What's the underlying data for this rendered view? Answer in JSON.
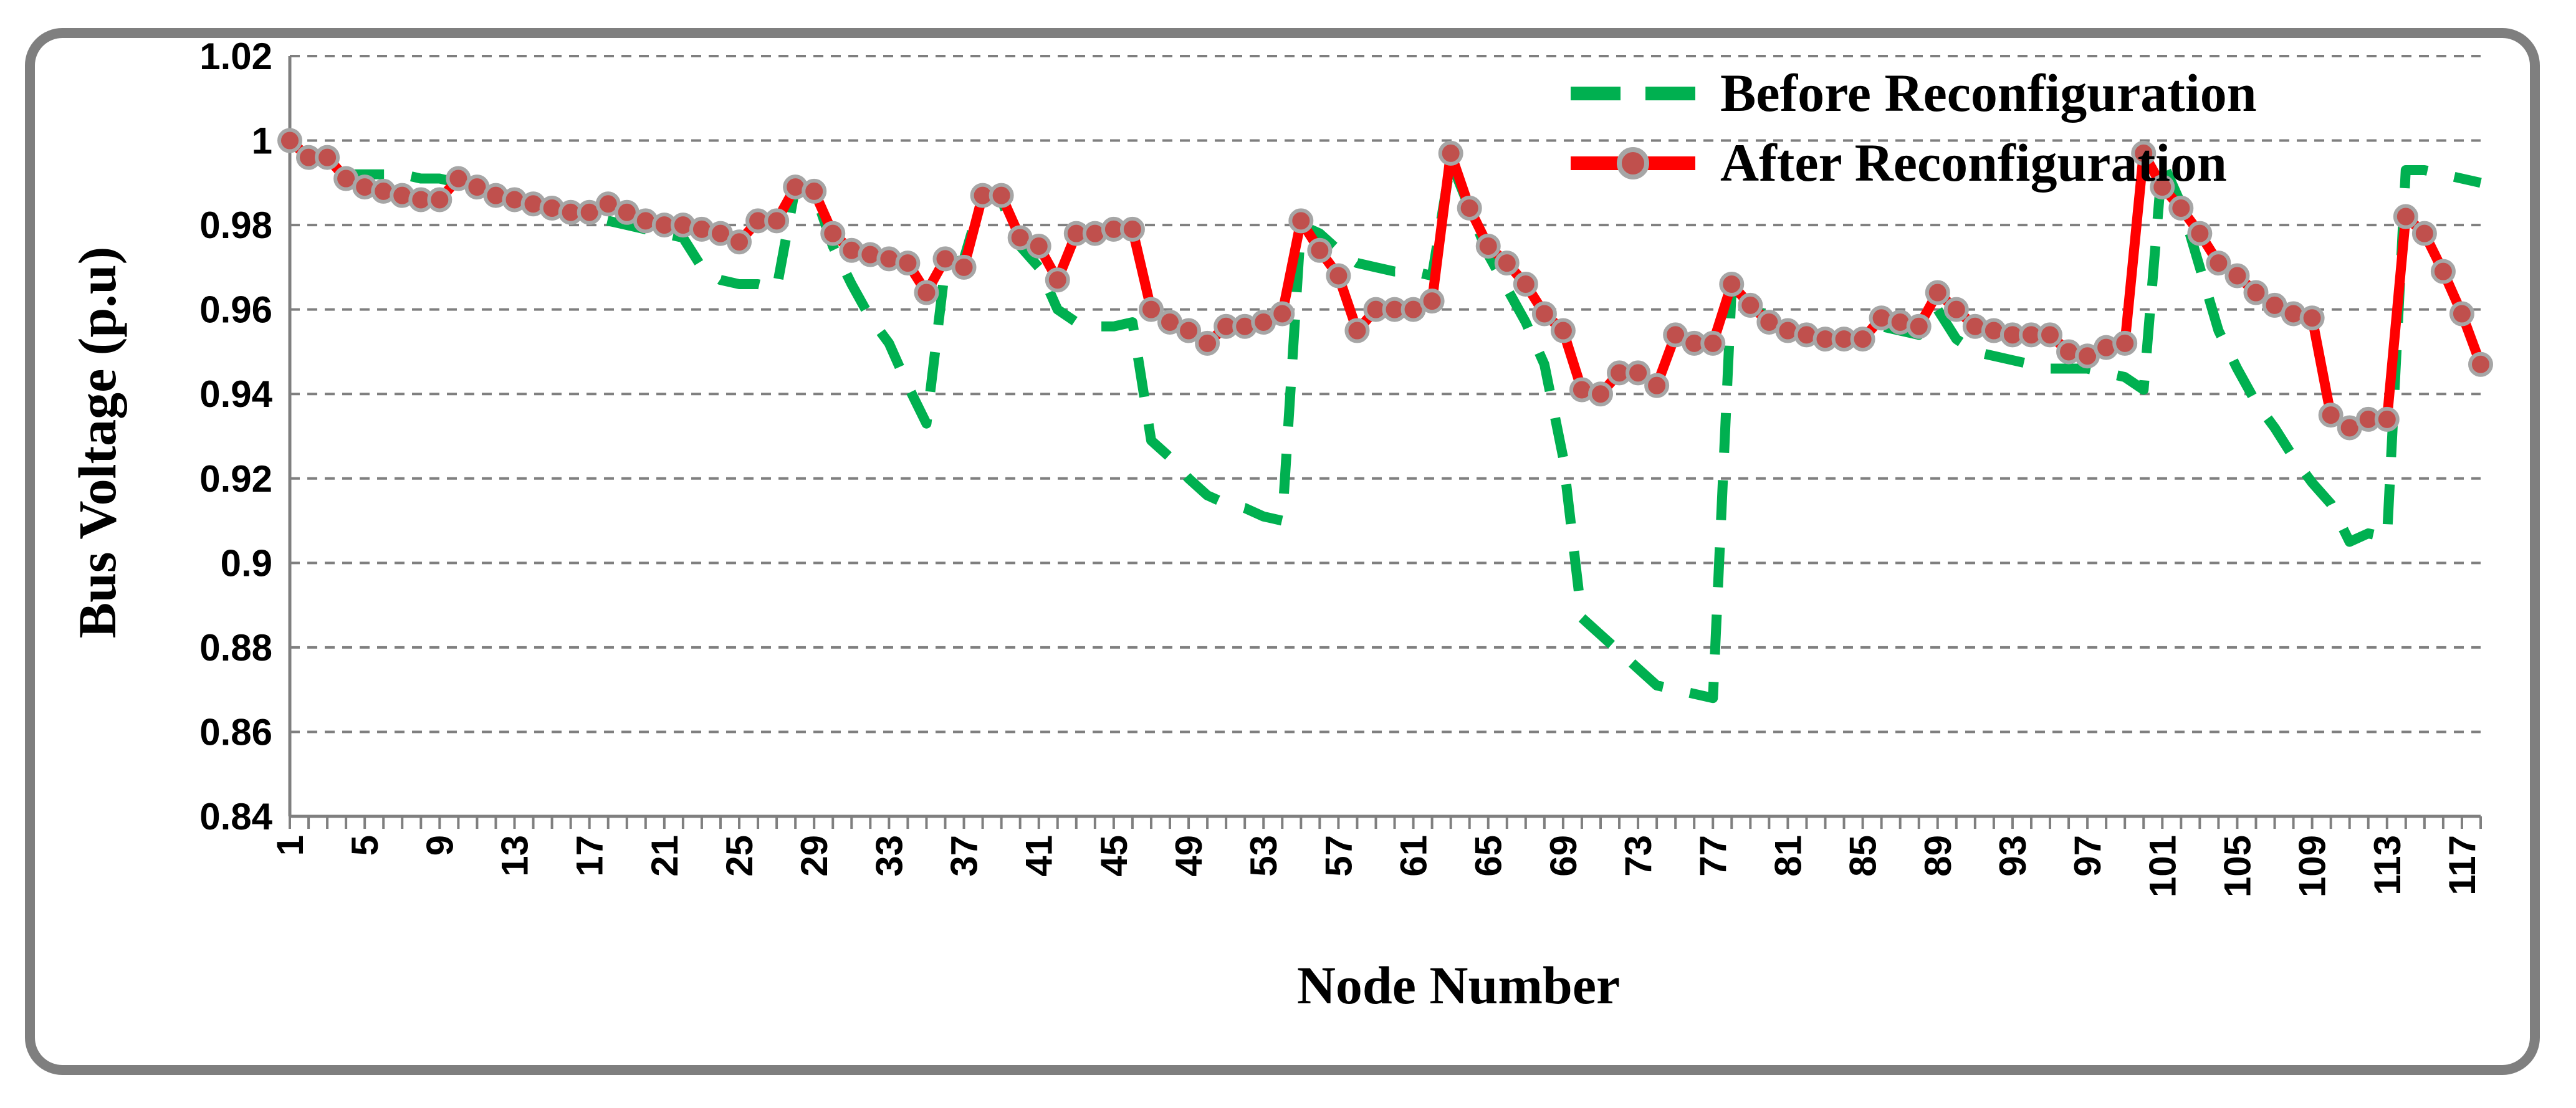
{
  "chart_data": {
    "type": "line",
    "xlabel": "Node Number",
    "ylabel": "Bus Voltage (p.u)",
    "ylim": [
      0.84,
      1.02
    ],
    "yticks": [
      "0.84",
      "0.86",
      "0.88",
      "0.9",
      "0.92",
      "0.94",
      "0.96",
      "0.98",
      "1",
      "1.02"
    ],
    "xlim": [
      1,
      118
    ],
    "xticks": [
      "1",
      "5",
      "9",
      "13",
      "17",
      "21",
      "25",
      "29",
      "33",
      "37",
      "41",
      "45",
      "49",
      "53",
      "57",
      "61",
      "65",
      "69",
      "73",
      "77",
      "81",
      "85",
      "89",
      "93",
      "97",
      "101",
      "105",
      "109",
      "113",
      "117"
    ],
    "grid": "horizontal dashed",
    "legend_position": "top-right",
    "series": [
      {
        "name": "Before Reconfiguration",
        "color": "#00b050",
        "style": "dashed",
        "values": [
          1.0,
          0.996,
          0.996,
          0.992,
          0.992,
          0.992,
          0.992,
          0.991,
          0.991,
          0.99,
          0.989,
          0.987,
          0.986,
          0.985,
          0.984,
          0.983,
          0.982,
          0.981,
          0.98,
          0.979,
          0.978,
          0.977,
          0.97,
          0.967,
          0.966,
          0.966,
          0.965,
          0.989,
          0.988,
          0.975,
          0.966,
          0.958,
          0.952,
          0.942,
          0.933,
          0.97,
          0.972,
          0.987,
          0.986,
          0.975,
          0.97,
          0.96,
          0.957,
          0.956,
          0.956,
          0.957,
          0.929,
          0.925,
          0.92,
          0.916,
          0.914,
          0.913,
          0.911,
          0.91,
          0.98,
          0.978,
          0.974,
          0.971,
          0.97,
          0.969,
          0.969,
          0.968,
          0.995,
          0.984,
          0.973,
          0.965,
          0.957,
          0.947,
          0.925,
          0.887,
          0.883,
          0.879,
          0.875,
          0.871,
          0.87,
          0.869,
          0.868,
          0.965,
          0.961,
          0.958,
          0.955,
          0.954,
          0.953,
          0.953,
          0.953,
          0.956,
          0.955,
          0.954,
          0.96,
          0.953,
          0.95,
          0.949,
          0.948,
          0.947,
          0.946,
          0.946,
          0.946,
          0.945,
          0.944,
          0.941,
          0.995,
          0.985,
          0.97,
          0.955,
          0.946,
          0.938,
          0.932,
          0.925,
          0.919,
          0.914,
          0.905,
          0.907,
          0.906,
          0.993,
          0.993,
          0.992,
          0.991,
          0.99
        ]
      },
      {
        "name": "After Reconfiguration",
        "color": "#ff0000",
        "marker": "circle",
        "values": [
          1.0,
          0.996,
          0.996,
          0.991,
          0.989,
          0.988,
          0.987,
          0.986,
          0.986,
          0.991,
          0.989,
          0.987,
          0.986,
          0.985,
          0.984,
          0.983,
          0.983,
          0.985,
          0.983,
          0.981,
          0.98,
          0.98,
          0.979,
          0.978,
          0.976,
          0.981,
          0.981,
          0.989,
          0.988,
          0.978,
          0.974,
          0.973,
          0.972,
          0.971,
          0.964,
          0.972,
          0.97,
          0.987,
          0.987,
          0.977,
          0.975,
          0.967,
          0.978,
          0.978,
          0.979,
          0.979,
          0.96,
          0.957,
          0.955,
          0.952,
          0.956,
          0.956,
          0.957,
          0.959,
          0.981,
          0.974,
          0.968,
          0.955,
          0.96,
          0.96,
          0.96,
          0.962,
          0.997,
          0.984,
          0.975,
          0.971,
          0.966,
          0.959,
          0.955,
          0.941,
          0.94,
          0.945,
          0.945,
          0.942,
          0.954,
          0.952,
          0.952,
          0.966,
          0.961,
          0.957,
          0.955,
          0.954,
          0.953,
          0.953,
          0.953,
          0.958,
          0.957,
          0.956,
          0.964,
          0.96,
          0.956,
          0.955,
          0.954,
          0.954,
          0.954,
          0.95,
          0.949,
          0.951,
          0.952,
          0.997,
          0.989,
          0.984,
          0.978,
          0.971,
          0.968,
          0.964,
          0.961,
          0.959,
          0.958,
          0.935,
          0.932,
          0.934,
          0.934,
          0.982,
          0.978,
          0.969,
          0.959,
          0.947
        ]
      }
    ]
  }
}
